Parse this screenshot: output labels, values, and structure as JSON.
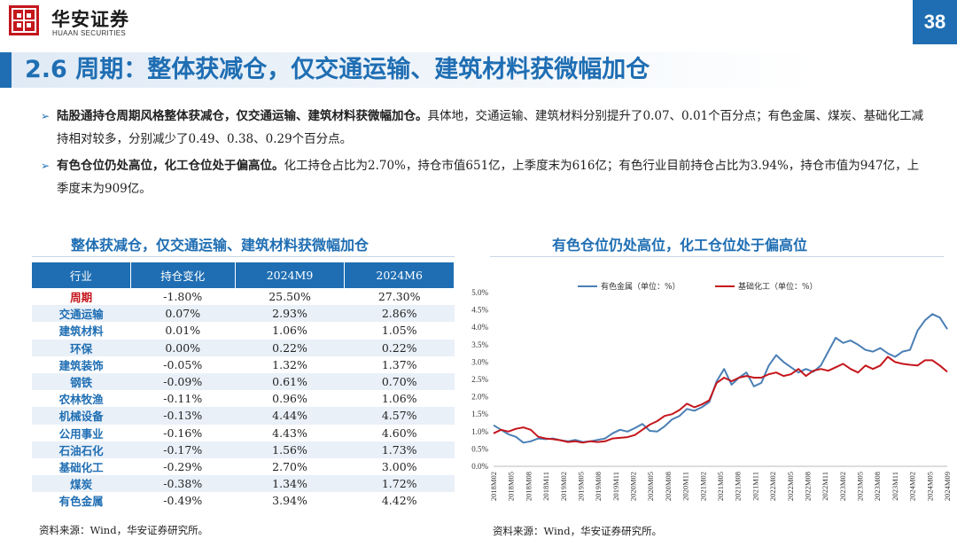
{
  "header": {
    "brand_cn": "华安证券",
    "brand_en": "HUAAN SECURITIES",
    "page_number": "38",
    "title": "2.6 周期：整体获减仓，仅交通运输、建筑材料获微幅加仓",
    "colors": {
      "primary": "#1f6eb3",
      "logo_red": "#c4161c"
    }
  },
  "bullets": [
    {
      "bold": "陆股通持仓周期风格整体获减仓，仅交通运输、建筑材料获微幅加仓。",
      "text": "具体地，交通运输、建筑材料分别提升了0.07、0.01个百分点；有色金属、煤炭、基础化工减持相对较多，分别减少了0.49、0.38、0.29个百分点。"
    },
    {
      "bold": "有色仓位仍处高位，化工仓位处于偏高位。",
      "text": "化工持仓占比为2.70%，持仓市值651亿，上季度末为616亿；有色行业目前持仓占比为3.94%，持仓市值为947亿，上季度末为909亿。"
    }
  ],
  "table_section": {
    "title": "整体获减仓，仅交通运输、建筑材料获微幅加仓",
    "columns": [
      "行业",
      "持仓变化",
      "2024M9",
      "2024M6"
    ],
    "rows": [
      [
        "周期",
        "-1.80%",
        "25.50%",
        "27.30%"
      ],
      [
        "交通运输",
        "0.07%",
        "2.93%",
        "2.86%"
      ],
      [
        "建筑材料",
        "0.01%",
        "1.06%",
        "1.05%"
      ],
      [
        "环保",
        "0.00%",
        "0.22%",
        "0.22%"
      ],
      [
        "建筑装饰",
        "-0.05%",
        "1.32%",
        "1.37%"
      ],
      [
        "钢铁",
        "-0.09%",
        "0.61%",
        "0.70%"
      ],
      [
        "农林牧渔",
        "-0.11%",
        "0.96%",
        "1.06%"
      ],
      [
        "机械设备",
        "-0.13%",
        "4.44%",
        "4.57%"
      ],
      [
        "公用事业",
        "-0.16%",
        "4.43%",
        "4.60%"
      ],
      [
        "石油石化",
        "-0.17%",
        "1.56%",
        "1.73%"
      ],
      [
        "基础化工",
        "-0.29%",
        "2.70%",
        "3.00%"
      ],
      [
        "煤炭",
        "-0.38%",
        "1.34%",
        "1.72%"
      ],
      [
        "有色金属",
        "-0.49%",
        "3.94%",
        "4.42%"
      ]
    ],
    "source": "资料来源：Wind，华安证券研究所。"
  },
  "chart_section": {
    "title": "有色仓位仍处高位，化工仓位处于偏高位",
    "source": "资料来源：Wind，华安证券研究所。"
  },
  "chart_data": {
    "type": "line",
    "title": "",
    "xlabel": "",
    "ylabel": "",
    "ylim": [
      0,
      5
    ],
    "y_ticks": [
      "0.0%",
      "0.5%",
      "1.0%",
      "1.5%",
      "2.0%",
      "2.5%",
      "3.0%",
      "3.5%",
      "4.0%",
      "4.5%",
      "5.0%"
    ],
    "legend_position": "top",
    "grid": false,
    "x_tick_labels": [
      "2018M02",
      "2018M05",
      "2018M08",
      "2018M11",
      "2019M02",
      "2019M05",
      "2019M08",
      "2019M11",
      "2020M02",
      "2020M05",
      "2020M08",
      "2020M11",
      "2021M02",
      "2021M05",
      "2021M08",
      "2021M11",
      "2022M02",
      "2022M05",
      "2022M08",
      "2022M11",
      "2023M02",
      "2023M05",
      "2023M08",
      "2023M11",
      "2024M02",
      "2024M05",
      "2024M09"
    ],
    "series": [
      {
        "name": "有色金属（单位：%）",
        "color": "#4a7fb5",
        "values": [
          1.18,
          1.05,
          0.92,
          0.85,
          0.68,
          0.72,
          0.8,
          0.78,
          0.8,
          0.75,
          0.72,
          0.76,
          0.7,
          0.72,
          0.76,
          0.8,
          0.95,
          1.05,
          1.0,
          1.1,
          1.22,
          1.02,
          1.0,
          1.15,
          1.35,
          1.45,
          1.65,
          1.6,
          1.7,
          1.85,
          2.45,
          2.8,
          2.35,
          2.55,
          2.7,
          2.3,
          2.4,
          2.9,
          3.2,
          3.0,
          2.85,
          2.7,
          2.8,
          2.72,
          2.9,
          3.3,
          3.7,
          3.55,
          3.62,
          3.5,
          3.35,
          3.3,
          3.4,
          3.25,
          3.15,
          3.3,
          3.35,
          3.9,
          4.2,
          4.38,
          4.28,
          3.95
        ]
      },
      {
        "name": "基础化工（单位：%）",
        "color": "#c4161c",
        "values": [
          0.95,
          1.05,
          1.0,
          1.08,
          1.12,
          1.05,
          0.85,
          0.8,
          0.78,
          0.75,
          0.7,
          0.72,
          0.68,
          0.72,
          0.7,
          0.72,
          0.8,
          0.82,
          0.84,
          0.9,
          1.05,
          1.2,
          1.3,
          1.45,
          1.5,
          1.62,
          1.8,
          1.7,
          1.78,
          1.9,
          2.4,
          2.55,
          2.45,
          2.55,
          2.6,
          2.55,
          2.55,
          2.65,
          2.7,
          2.6,
          2.65,
          2.8,
          2.6,
          2.75,
          2.8,
          2.75,
          2.85,
          2.95,
          2.8,
          2.7,
          2.9,
          2.8,
          2.9,
          3.15,
          3.0,
          2.95,
          2.92,
          2.9,
          3.05,
          3.05,
          2.9,
          2.72
        ]
      }
    ]
  }
}
